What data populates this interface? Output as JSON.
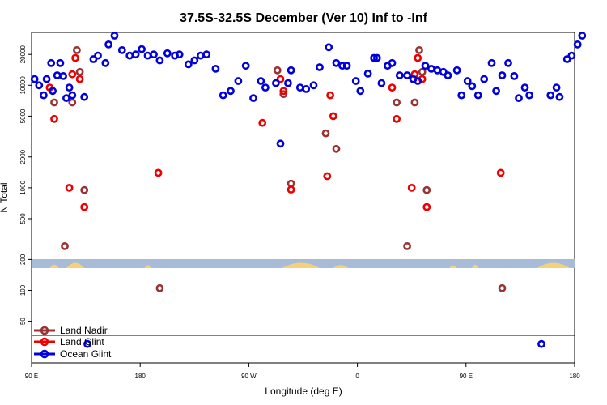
{
  "chart_data": {
    "type": "scatter",
    "title": "37.5S-32.5S December (Ver 10)   Inf to -Inf",
    "xlabel": "Longitude (deg E)",
    "ylabel": "N Total",
    "y_scale": "log",
    "ylim": [
      30,
      40000
    ],
    "x_ticks": [
      "90 E",
      "180",
      "90 W",
      "0",
      "90 E",
      "180"
    ],
    "y_ticks": [
      "50",
      "100",
      "200",
      "500",
      "1000",
      "2000",
      "5000",
      "10000",
      "20000"
    ],
    "grid": false,
    "legend_position": "bottom-left",
    "colors": {
      "land_nadir": "#993333",
      "land_glint": "#ee0000",
      "ocean_glint": "#0000dd",
      "ocean_band": "#a8bcd8",
      "land_band": "#f5d27a"
    },
    "series": [
      {
        "name": "Land Nadir",
        "color": "#993333",
        "points": [
          [
            105,
            6800
          ],
          [
            112,
            270
          ],
          [
            117,
            6800
          ],
          [
            120,
            22000
          ],
          [
            122,
            13500
          ],
          [
            125,
            950
          ],
          [
            175,
            105
          ],
          [
            253,
            14000
          ],
          [
            257,
            8200
          ],
          [
            262,
            1100
          ],
          [
            285,
            3400
          ],
          [
            292,
            2400
          ],
          [
            332,
            6800
          ],
          [
            339,
            270
          ],
          [
            344,
            6800
          ],
          [
            347,
            22000
          ],
          [
            349,
            13500
          ],
          [
            352,
            950
          ],
          [
            402,
            105
          ]
        ]
      },
      {
        "name": "Land Glint",
        "color": "#ee0000",
        "points": [
          [
            102,
            9500
          ],
          [
            105,
            4700
          ],
          [
            115,
            1000
          ],
          [
            117,
            12800
          ],
          [
            119,
            18500
          ],
          [
            122,
            11500
          ],
          [
            125,
            650
          ],
          [
            174,
            1400
          ],
          [
            243,
            4300
          ],
          [
            255,
            11500
          ],
          [
            257,
            8800
          ],
          [
            262,
            960
          ],
          [
            286,
            1300
          ],
          [
            288,
            8000
          ],
          [
            290,
            5000
          ],
          [
            329,
            9500
          ],
          [
            332,
            4700
          ],
          [
            342,
            1000
          ],
          [
            344,
            12800
          ],
          [
            346,
            18500
          ],
          [
            349,
            11500
          ],
          [
            352,
            650
          ],
          [
            401,
            1400
          ]
        ]
      },
      {
        "name": "Ocean Glint",
        "color": "#0000dd",
        "points": [
          [
            92,
            11500
          ],
          [
            95,
            10000
          ],
          [
            98,
            8000
          ],
          [
            100,
            11500
          ],
          [
            103,
            16500
          ],
          [
            104,
            8800
          ],
          [
            107,
            12500
          ],
          [
            109,
            16500
          ],
          [
            111,
            12300
          ],
          [
            113,
            7500
          ],
          [
            115,
            9500
          ],
          [
            117,
            8000
          ],
          [
            125,
            7700
          ],
          [
            127,
            30
          ],
          [
            131,
            18000
          ],
          [
            134,
            19500
          ],
          [
            139,
            16500
          ],
          [
            141,
            25000
          ],
          [
            145,
            30500
          ],
          [
            150,
            22000
          ],
          [
            155,
            19500
          ],
          [
            159,
            20000
          ],
          [
            163,
            22500
          ],
          [
            167,
            19500
          ],
          [
            171,
            20000
          ],
          [
            175,
            17500
          ],
          [
            180,
            20500
          ],
          [
            185,
            19500
          ],
          [
            188,
            20000
          ],
          [
            194,
            16000
          ],
          [
            198,
            17500
          ],
          [
            202,
            19500
          ],
          [
            206,
            20000
          ],
          [
            212,
            14500
          ],
          [
            217,
            8000
          ],
          [
            222,
            8800
          ],
          [
            227,
            11000
          ],
          [
            232,
            15500
          ],
          [
            237,
            7500
          ],
          [
            242,
            11000
          ],
          [
            245,
            9500
          ],
          [
            252,
            10500
          ],
          [
            255,
            2700
          ],
          [
            260,
            10500
          ],
          [
            262,
            14000
          ],
          [
            268,
            9500
          ],
          [
            272,
            9200
          ],
          [
            277,
            10000
          ],
          [
            281,
            15000
          ],
          [
            287,
            23500
          ],
          [
            292,
            16500
          ],
          [
            296,
            15500
          ],
          [
            299,
            15500
          ],
          [
            305,
            11000
          ],
          [
            308,
            8800
          ],
          [
            313,
            13000
          ],
          [
            317,
            18500
          ],
          [
            319,
            18500
          ],
          [
            322,
            10500
          ],
          [
            326,
            15500
          ],
          [
            329,
            16500
          ],
          [
            334,
            12500
          ],
          [
            339,
            12500
          ],
          [
            343,
            11500
          ],
          [
            346,
            11000
          ],
          [
            351,
            15500
          ],
          [
            355,
            14500
          ],
          [
            359,
            14000
          ],
          [
            363,
            13500
          ],
          [
            366,
            12500
          ],
          [
            372,
            14000
          ],
          [
            375,
            8000
          ],
          [
            379,
            11000
          ],
          [
            382,
            9800
          ],
          [
            386,
            8000
          ],
          [
            390,
            11500
          ],
          [
            395,
            16500
          ],
          [
            398,
            8800
          ],
          [
            402,
            12500
          ],
          [
            406,
            16500
          ],
          [
            410,
            12300
          ],
          [
            413,
            7500
          ],
          [
            417,
            9500
          ],
          [
            420,
            8000
          ],
          [
            428,
            30
          ],
          [
            434,
            8000
          ],
          [
            438,
            9500
          ],
          [
            440,
            7700
          ],
          [
            445,
            18000
          ],
          [
            448,
            19500
          ],
          [
            452,
            25000
          ],
          [
            455,
            30500
          ]
        ]
      }
    ]
  }
}
